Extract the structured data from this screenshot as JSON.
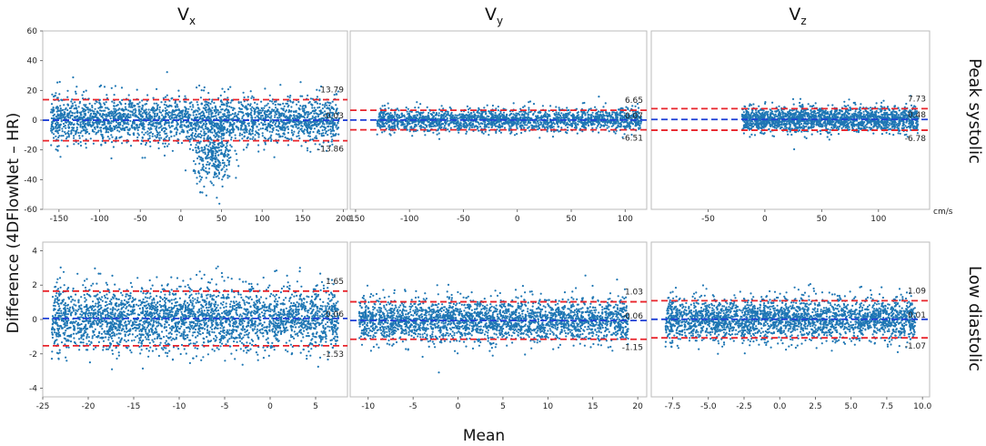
{
  "figure": {
    "ylabel": "Difference (4DFlowNet – HR)",
    "xlabel": "Mean",
    "columns": [
      {
        "base": "V",
        "sub": "x"
      },
      {
        "base": "V",
        "sub": "y"
      },
      {
        "base": "V",
        "sub": "z"
      }
    ],
    "rows": [
      "Peak systolic",
      "Low diastolic"
    ],
    "unit": "cm/s",
    "colors": {
      "points": "#1f77b4",
      "mean_line": "#1f3fd6",
      "limit_line": "#e8242b"
    }
  },
  "chart_data": [
    {
      "type": "scatter",
      "row": "Peak systolic",
      "column": "Vx",
      "xlim": [
        -170,
        205
      ],
      "ylim": [
        -60,
        60
      ],
      "xticks": [
        -150,
        -100,
        -50,
        0,
        50,
        100,
        150,
        200
      ],
      "yticks": [
        -60,
        -40,
        -20,
        0,
        20,
        40,
        60
      ],
      "mean": -0.03,
      "upper_loa": 13.79,
      "lower_loa": -13.86,
      "labels": {
        "upper": "13.79",
        "mean": "-0.03",
        "lower": "-13.86"
      }
    },
    {
      "type": "scatter",
      "row": "Peak systolic",
      "column": "Vy",
      "xlim": [
        -155,
        120
      ],
      "ylim": [
        -60,
        60
      ],
      "xticks": [
        -150,
        -100,
        -50,
        0,
        50,
        100
      ],
      "yticks": [],
      "mean": 0.07,
      "upper_loa": 6.65,
      "lower_loa": -6.51,
      "labels": {
        "upper": "6.65",
        "mean": "0.07",
        "lower": "-6.51"
      }
    },
    {
      "type": "scatter",
      "row": "Peak systolic",
      "column": "Vz",
      "xlim": [
        -100,
        145
      ],
      "ylim": [
        -60,
        60
      ],
      "xticks": [
        -50,
        0,
        50,
        100
      ],
      "yticks": [],
      "mean": 0.48,
      "upper_loa": 7.73,
      "lower_loa": -6.78,
      "labels": {
        "upper": "7.73",
        "mean": "0.48",
        "lower": "-6.78"
      }
    },
    {
      "type": "scatter",
      "row": "Low diastolic",
      "column": "Vx",
      "xlim": [
        -25,
        8.5
      ],
      "ylim": [
        -4.5,
        4.5
      ],
      "xticks": [
        -25,
        -20,
        -15,
        -10,
        -5,
        0,
        5
      ],
      "yticks": [
        -4,
        -2,
        0,
        2,
        4
      ],
      "mean": 0.06,
      "upper_loa": 1.65,
      "lower_loa": -1.53,
      "labels": {
        "upper": "1.65",
        "mean": "0.06",
        "lower": "-1.53"
      }
    },
    {
      "type": "scatter",
      "row": "Low diastolic",
      "column": "Vy",
      "xlim": [
        -12,
        21
      ],
      "ylim": [
        -4.5,
        4.5
      ],
      "xticks": [
        -10,
        -5,
        0,
        5,
        10,
        15,
        20
      ],
      "yticks": [],
      "mean": -0.06,
      "upper_loa": 1.03,
      "lower_loa": -1.15,
      "labels": {
        "upper": "1.03",
        "mean": "-0.06",
        "lower": "-1.15"
      }
    },
    {
      "type": "scatter",
      "row": "Low diastolic",
      "column": "Vz",
      "xlim": [
        -9,
        10.5
      ],
      "ylim": [
        -4.5,
        4.5
      ],
      "xticks": [
        -7.5,
        -5.0,
        -2.5,
        0.0,
        2.5,
        5.0,
        7.5,
        10.0
      ],
      "yticks": [],
      "mean": 0.01,
      "upper_loa": 1.09,
      "lower_loa": -1.07,
      "labels": {
        "upper": "1.09",
        "mean": "0.01",
        "lower": "-1.07"
      }
    }
  ]
}
